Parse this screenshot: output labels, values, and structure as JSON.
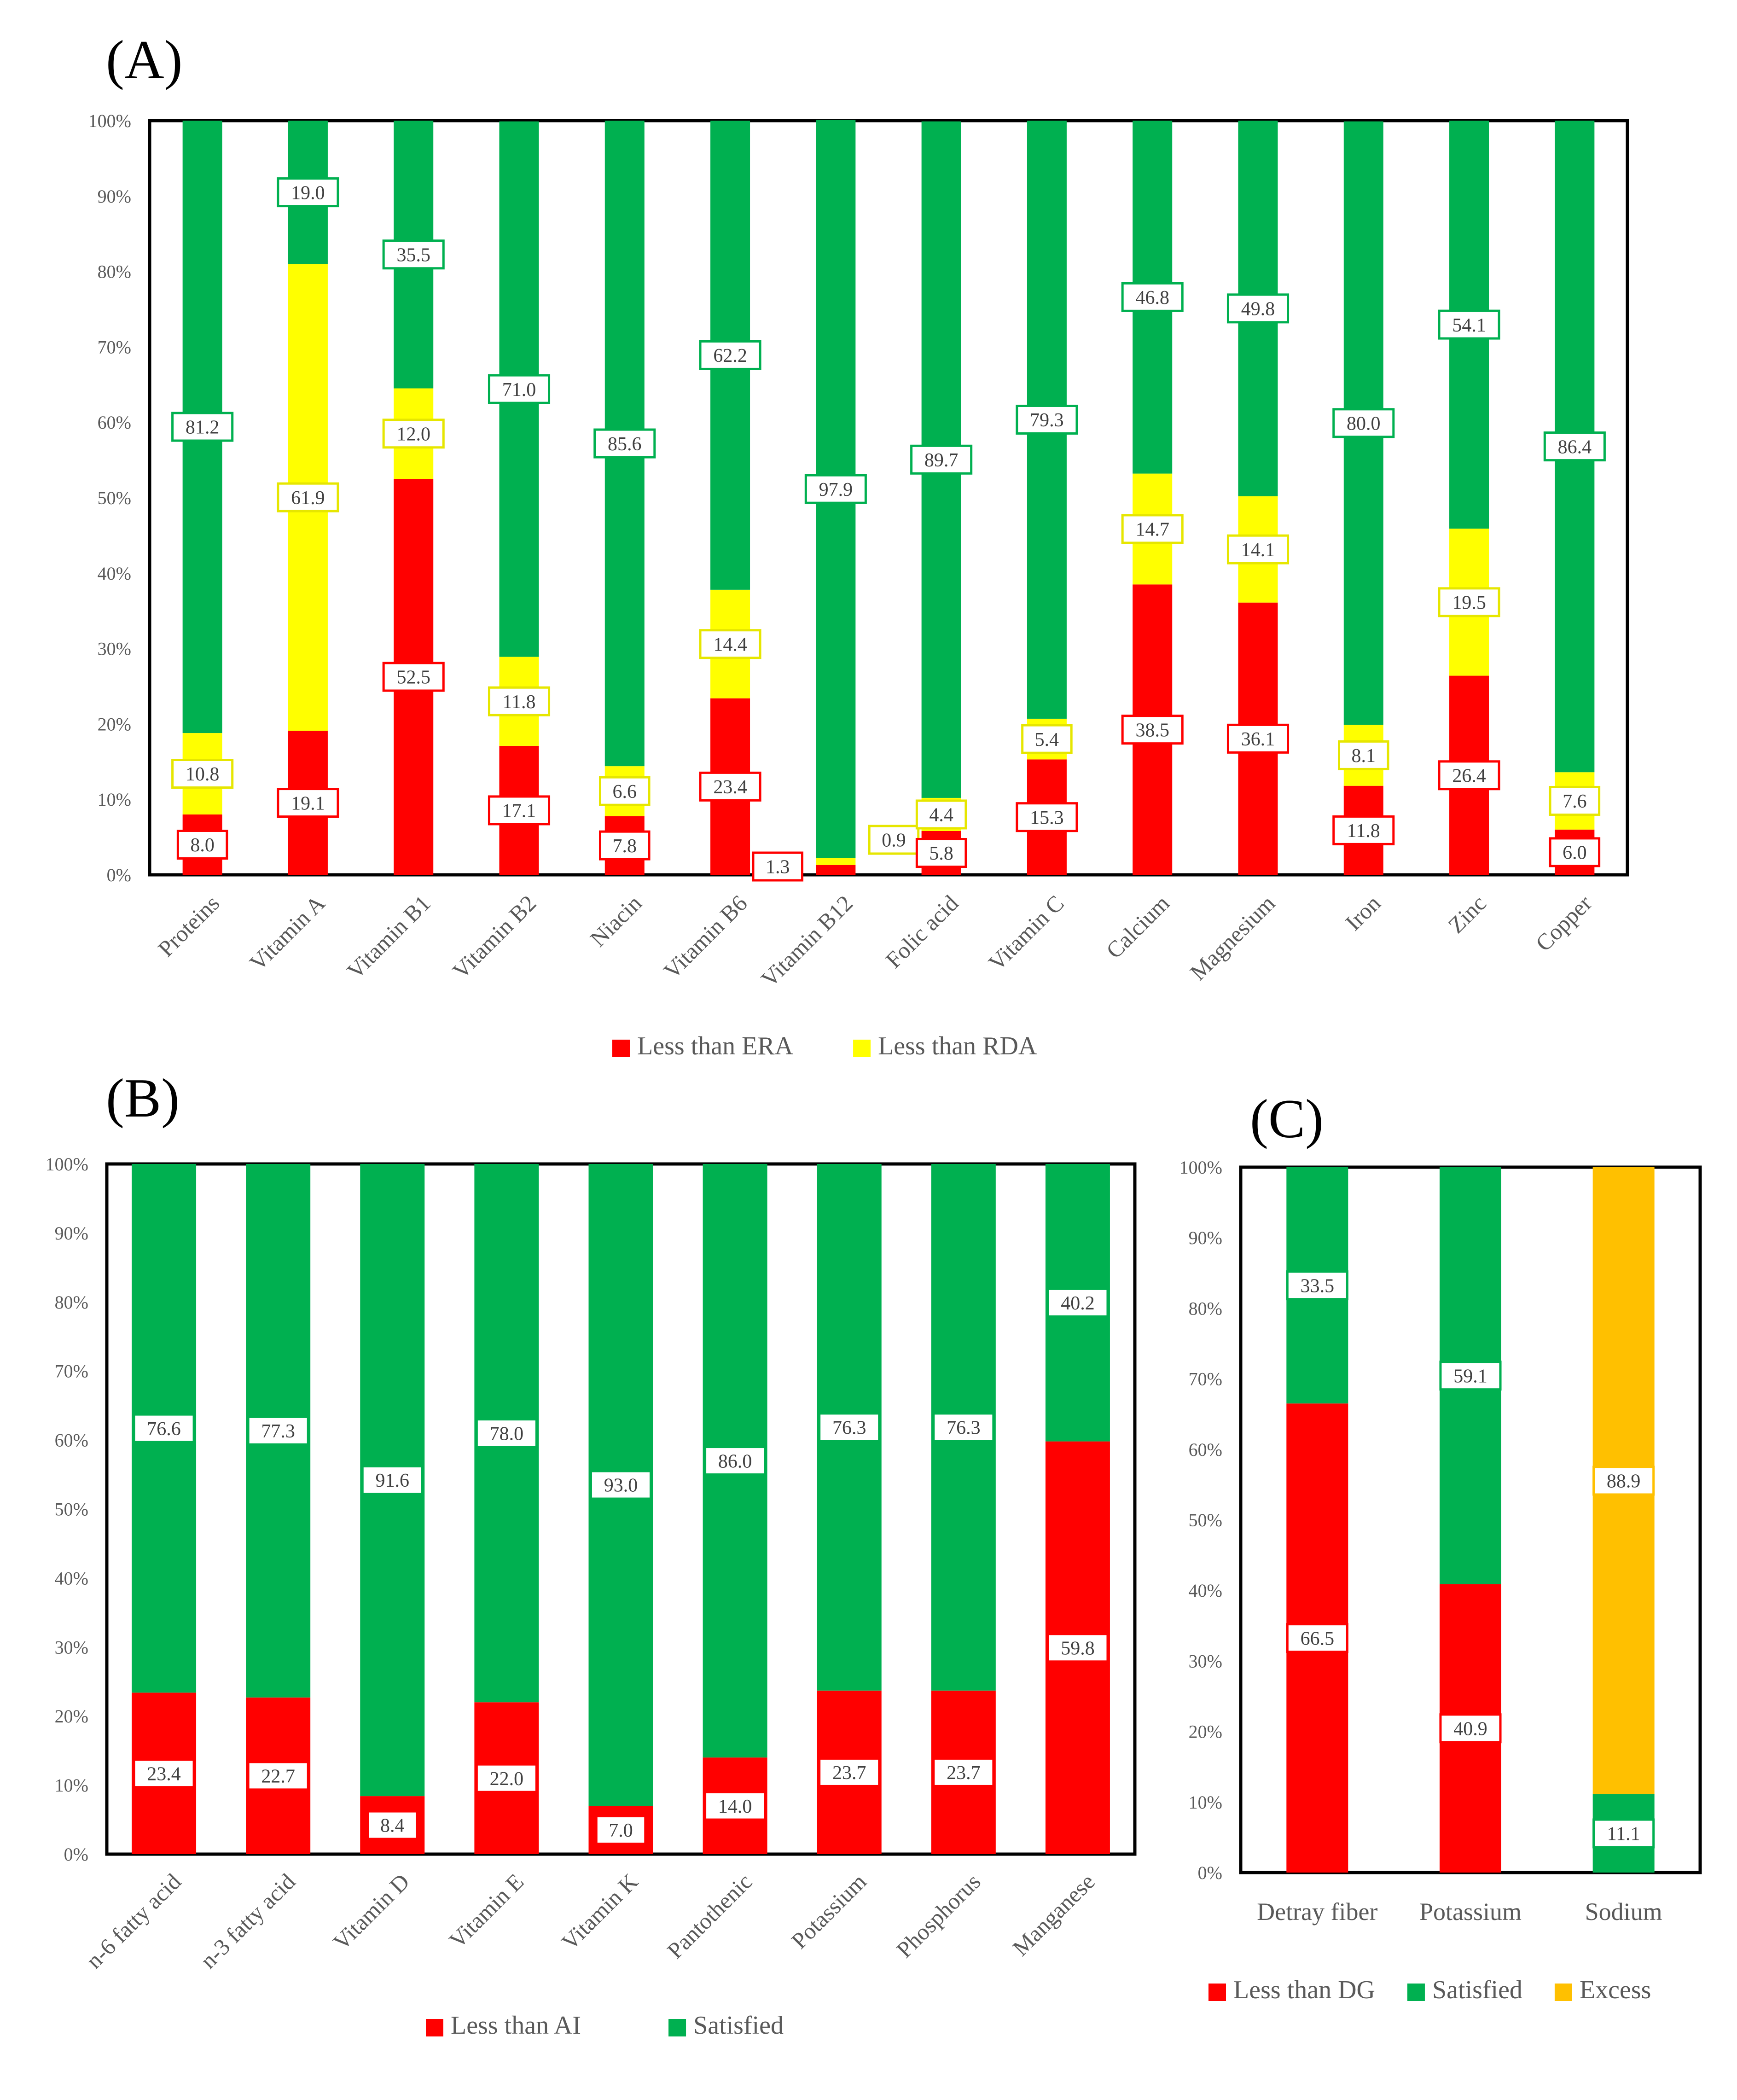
{
  "colors": {
    "era": "#ff0000",
    "rda": "#ffff00",
    "satisfied": "#00b050",
    "excess": "#ffc000",
    "frame": "#000000",
    "axis_text": "#595959",
    "label_text": "#404040"
  },
  "chart_data": [
    {
      "panel": "(A)",
      "type": "bar",
      "stacked": true,
      "ylim": [
        0,
        100
      ],
      "y_ticks": [
        "0%",
        "10%",
        "20%",
        "30%",
        "40%",
        "50%",
        "60%",
        "70%",
        "80%",
        "90%",
        "100%"
      ],
      "categories": [
        "Proteins",
        "Vitamin A",
        "Vitamin B1",
        "Vitamin B2",
        "Niacin",
        "Vitamin B6",
        "Vitamin B12",
        "Folic acid",
        "Vitamin C",
        "Calcium",
        "Magnesium",
        "Iron",
        "Zinc",
        "Copper"
      ],
      "series": [
        {
          "name": "Less than ERA",
          "color": "#ff0000",
          "values": [
            8.0,
            19.1,
            52.5,
            17.1,
            7.8,
            23.4,
            1.3,
            5.8,
            15.3,
            38.5,
            36.1,
            11.8,
            26.4,
            6.0
          ]
        },
        {
          "name": "Less than RDA",
          "color": "#ffff00",
          "values": [
            10.8,
            61.9,
            12.0,
            11.8,
            6.6,
            14.4,
            0.9,
            4.4,
            5.4,
            14.7,
            14.1,
            8.1,
            19.5,
            7.6
          ]
        },
        {
          "name": "",
          "color": "#00b050",
          "values": [
            81.2,
            19.0,
            35.5,
            71.0,
            85.6,
            62.2,
            97.9,
            89.7,
            79.3,
            46.8,
            49.8,
            80.0,
            54.1,
            86.4
          ]
        }
      ],
      "legend": [
        "Less than ERA",
        "Less than RDA"
      ],
      "legend_colors": [
        "#ff0000",
        "#ffff00"
      ]
    },
    {
      "panel": "(B)",
      "type": "bar",
      "stacked": true,
      "ylim": [
        0,
        100
      ],
      "y_ticks": [
        "0%",
        "10%",
        "20%",
        "30%",
        "40%",
        "50%",
        "60%",
        "70%",
        "80%",
        "90%",
        "100%"
      ],
      "categories": [
        "n-6 fatty acid",
        "n-3 fatty acid",
        "Vitamin D",
        "Vitamin E",
        "Vitamin K",
        "Pantothenic",
        "Potassium",
        "Phosphorus",
        "Manganese"
      ],
      "series": [
        {
          "name": "Less than AI",
          "color": "#ff0000",
          "values": [
            23.4,
            22.7,
            8.4,
            22.0,
            7.0,
            14.0,
            23.7,
            23.7,
            59.8
          ]
        },
        {
          "name": "Satisfied",
          "color": "#00b050",
          "values": [
            76.6,
            77.3,
            91.6,
            78.0,
            93.0,
            86.0,
            76.3,
            76.3,
            40.2
          ]
        }
      ],
      "legend": [
        "Less than AI",
        "Satisfied"
      ],
      "legend_colors": [
        "#ff0000",
        "#00b050"
      ]
    },
    {
      "panel": "(C)",
      "type": "bar",
      "stacked": true,
      "ylim": [
        0,
        100
      ],
      "y_ticks": [
        "0%",
        "10%",
        "20%",
        "30%",
        "40%",
        "50%",
        "60%",
        "70%",
        "80%",
        "90%",
        "100%"
      ],
      "categories": [
        "Detray fiber",
        "Potassium",
        "Sodium"
      ],
      "series": [
        {
          "name": "Less than DG",
          "color": "#ff0000",
          "values": [
            66.5,
            40.9,
            0
          ]
        },
        {
          "name": "Satisfied",
          "color": "#00b050",
          "values": [
            33.5,
            59.1,
            11.1
          ]
        },
        {
          "name": "Excess",
          "color": "#ffc000",
          "values": [
            0,
            0,
            88.9
          ]
        }
      ],
      "legend": [
        "Less than DG",
        "Satisfied",
        "Excess"
      ],
      "legend_colors": [
        "#ff0000",
        "#00b050",
        "#ffc000"
      ]
    }
  ]
}
